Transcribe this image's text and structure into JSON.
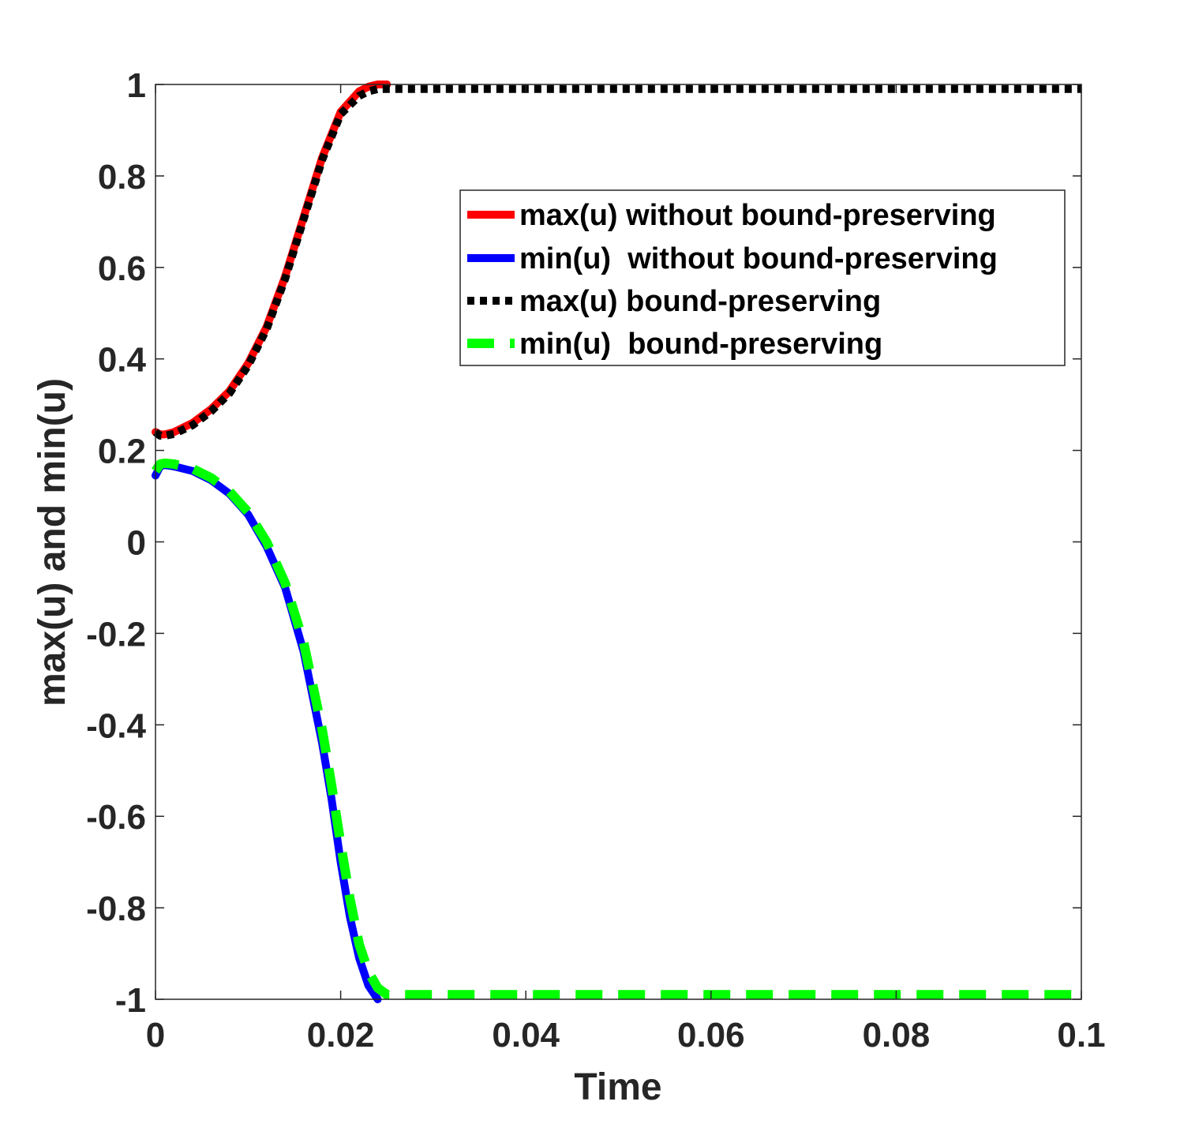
{
  "chart_data": {
    "type": "line",
    "title": "",
    "xlabel": "Time",
    "ylabel": "max(u) and min(u)",
    "xlim": [
      0,
      0.1
    ],
    "ylim": [
      -1,
      1
    ],
    "x_ticks": [
      0,
      0.02,
      0.04,
      0.06,
      0.08,
      0.1
    ],
    "x_tick_labels": [
      "0",
      "0.02",
      "0.04",
      "0.06",
      "0.08",
      "0.1"
    ],
    "y_ticks": [
      -1,
      -0.8,
      -0.6,
      -0.4,
      -0.2,
      0,
      0.2,
      0.4,
      0.6,
      0.8,
      1
    ],
    "y_tick_labels": [
      "-1",
      "-0.8",
      "-0.6",
      "-0.4",
      "-0.2",
      "0",
      "0.2",
      "0.4",
      "0.6",
      "0.8",
      "1"
    ],
    "grid": false,
    "legend_position": "top-right",
    "series": [
      {
        "name": "max(u) without bound-preserving",
        "color": "#ff0000",
        "style": "solid",
        "x": [
          0,
          0.0005,
          0.001,
          0.002,
          0.004,
          0.006,
          0.008,
          0.01,
          0.012,
          0.014,
          0.016,
          0.018,
          0.02,
          0.022,
          0.023,
          0.024,
          0.025
        ],
        "y": [
          0.24,
          0.235,
          0.235,
          0.24,
          0.26,
          0.29,
          0.33,
          0.39,
          0.47,
          0.58,
          0.71,
          0.84,
          0.94,
          0.985,
          0.995,
          1.0,
          1.0
        ]
      },
      {
        "name": "min(u)  without bound-preserving",
        "color": "#0000ff",
        "style": "solid",
        "x": [
          0,
          0.0005,
          0.001,
          0.002,
          0.004,
          0.006,
          0.008,
          0.01,
          0.012,
          0.014,
          0.016,
          0.018,
          0.019,
          0.02,
          0.021,
          0.022,
          0.023,
          0.024
        ],
        "y": [
          0.145,
          0.165,
          0.168,
          0.165,
          0.155,
          0.135,
          0.105,
          0.06,
          -0.01,
          -0.1,
          -0.24,
          -0.44,
          -0.56,
          -0.7,
          -0.82,
          -0.91,
          -0.97,
          -1.0
        ]
      },
      {
        "name": "max(u) bound-preserving",
        "color": "#000000",
        "style": "dotted",
        "x": [
          0,
          0.0005,
          0.001,
          0.002,
          0.004,
          0.006,
          0.008,
          0.01,
          0.012,
          0.014,
          0.016,
          0.018,
          0.02,
          0.022,
          0.023,
          0.024,
          0.025,
          0.03,
          0.04,
          0.05,
          0.06,
          0.07,
          0.08,
          0.09,
          0.1
        ],
        "y": [
          0.24,
          0.232,
          0.232,
          0.236,
          0.255,
          0.285,
          0.325,
          0.385,
          0.465,
          0.575,
          0.705,
          0.835,
          0.935,
          0.975,
          0.985,
          0.99,
          0.99,
          0.99,
          0.99,
          0.99,
          0.99,
          0.99,
          0.99,
          0.99,
          0.99
        ]
      },
      {
        "name": "min(u)  bound-preserving",
        "color": "#00ff00",
        "style": "dashed",
        "x": [
          0,
          0.0005,
          0.001,
          0.002,
          0.004,
          0.006,
          0.008,
          0.01,
          0.012,
          0.014,
          0.016,
          0.018,
          0.019,
          0.02,
          0.021,
          0.022,
          0.023,
          0.024,
          0.025,
          0.026,
          0.03,
          0.04,
          0.05,
          0.06,
          0.07,
          0.08,
          0.09,
          0.1
        ],
        "y": [
          0.155,
          0.17,
          0.172,
          0.17,
          0.16,
          0.14,
          0.11,
          0.065,
          0.0,
          -0.09,
          -0.22,
          -0.41,
          -0.53,
          -0.66,
          -0.78,
          -0.88,
          -0.94,
          -0.975,
          -0.99,
          -0.99,
          -0.99,
          -0.99,
          -0.99,
          -0.99,
          -0.99,
          -0.99,
          -0.99,
          -0.99
        ]
      }
    ]
  }
}
